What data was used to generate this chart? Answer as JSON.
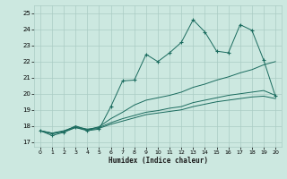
{
  "xlabel": "Humidex (Indice chaleur)",
  "background_color": "#cce8e0",
  "grid_color": "#aaccc4",
  "line_color": "#1a6b5e",
  "xlim": [
    -0.5,
    20.5
  ],
  "ylim": [
    16.7,
    25.5
  ],
  "yticks": [
    17,
    18,
    19,
    20,
    21,
    22,
    23,
    24,
    25
  ],
  "xticks": [
    0,
    1,
    2,
    3,
    4,
    5,
    6,
    7,
    8,
    9,
    10,
    11,
    12,
    13,
    14,
    15,
    16,
    17,
    18,
    19,
    20
  ],
  "series": [
    [
      17.7,
      17.4,
      17.6,
      17.9,
      17.7,
      17.8,
      19.2,
      20.8,
      20.85,
      22.45,
      22.0,
      22.55,
      23.2,
      24.6,
      23.85,
      22.65,
      22.55,
      24.3,
      23.95,
      22.1,
      19.85
    ],
    [
      17.7,
      17.5,
      17.65,
      18.0,
      17.75,
      17.95,
      18.45,
      18.85,
      19.3,
      19.6,
      19.75,
      19.9,
      20.1,
      20.4,
      20.6,
      20.85,
      21.05,
      21.3,
      21.5,
      21.8,
      22.0
    ],
    [
      17.7,
      17.55,
      17.7,
      17.95,
      17.8,
      17.9,
      18.2,
      18.45,
      18.65,
      18.85,
      18.95,
      19.1,
      19.2,
      19.45,
      19.6,
      19.75,
      19.9,
      20.0,
      20.1,
      20.2,
      19.9
    ],
    [
      17.7,
      17.55,
      17.65,
      17.9,
      17.75,
      17.85,
      18.1,
      18.3,
      18.5,
      18.7,
      18.8,
      18.9,
      19.0,
      19.2,
      19.35,
      19.5,
      19.6,
      19.7,
      19.8,
      19.85,
      19.7
    ]
  ]
}
